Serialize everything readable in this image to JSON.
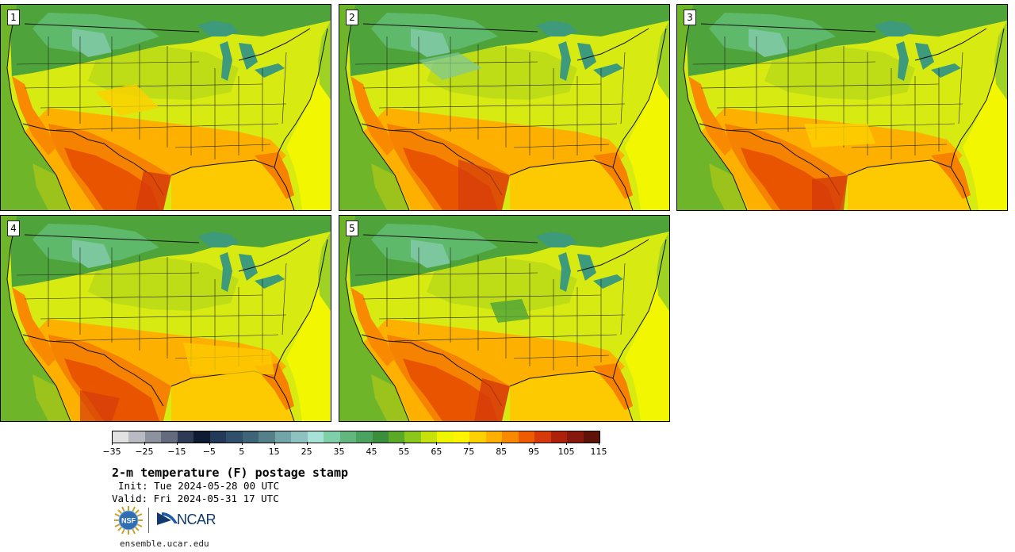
{
  "stamps": [
    {
      "label": "1"
    },
    {
      "label": "2"
    },
    {
      "label": "3"
    },
    {
      "label": "4"
    },
    {
      "label": "5"
    }
  ],
  "colorbar": {
    "colors": [
      "#e2e2e2",
      "#b8bcc2",
      "#8c939e",
      "#626c7c",
      "#2f3a55",
      "#0f1b33",
      "#233a58",
      "#2f4f6a",
      "#3f6478",
      "#558089",
      "#73a4a9",
      "#8ec2c1",
      "#a6e2d8",
      "#7fd0a8",
      "#63b77e",
      "#4aa35e",
      "#3a8e3c",
      "#5aaa27",
      "#8cc81b",
      "#c6e20a",
      "#eef700",
      "#fff500",
      "#fdd100",
      "#fdb000",
      "#f98a00",
      "#ee5b00",
      "#d63a0a",
      "#ad210b",
      "#86180e",
      "#5e1208"
    ],
    "tick_labels": [
      "−35",
      "−25",
      "−15",
      "−5",
      "5",
      "15",
      "25",
      "35",
      "45",
      "55",
      "65",
      "75",
      "85",
      "95",
      "105",
      "115"
    ]
  },
  "title": "2-m temperature (F) postage stamp",
  "init": "Init: Tue 2024-05-28 00 UTC",
  "valid": "Valid: Fri 2024-05-31 17 UTC",
  "logos": {
    "nsf": "NSF",
    "ncar": "NCAR"
  },
  "url": "ensemble.ucar.edu"
}
